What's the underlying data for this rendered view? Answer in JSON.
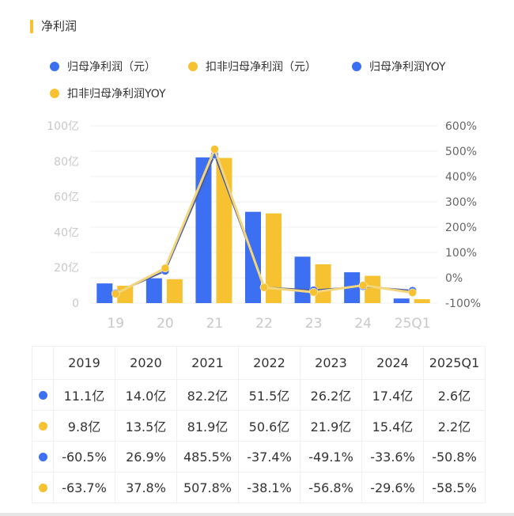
{
  "title": "净利润",
  "colors": {
    "blue": "#3d6ff2",
    "yellow": "#f7c232",
    "blue_line": "#4c5d9c",
    "yellow_line": "#f3d57c"
  },
  "legend": [
    {
      "label": "归母净利润（元）",
      "color": "#3d6ff2"
    },
    {
      "label": "扣非归母净利润（元）",
      "color": "#f7c232"
    },
    {
      "label": "归母净利润YOY",
      "color": "#3d6ff2"
    },
    {
      "label": "扣非归母净利润YOY",
      "color": "#f7c232"
    }
  ],
  "chart_data": {
    "type": "bar+line",
    "categories": [
      "19",
      "20",
      "21",
      "22",
      "23",
      "24",
      "25Q1"
    ],
    "left_axis": {
      "ticks": [
        "0",
        "20亿",
        "40亿",
        "60亿",
        "80亿",
        "100亿"
      ],
      "range": [
        0,
        100
      ],
      "unit": "亿"
    },
    "right_axis": {
      "ticks": [
        "-100%",
        "0%",
        "100%",
        "200%",
        "300%",
        "400%",
        "500%",
        "600%"
      ],
      "range": [
        -100,
        600
      ]
    },
    "grid": true,
    "legend_position": "top",
    "series": [
      {
        "name": "归母净利润（元）",
        "type": "bar",
        "axis": "left",
        "values": [
          11.1,
          14.0,
          82.2,
          51.5,
          26.2,
          17.4,
          2.6
        ]
      },
      {
        "name": "扣非归母净利润（元）",
        "type": "bar",
        "axis": "left",
        "values": [
          9.8,
          13.5,
          81.9,
          50.6,
          21.9,
          15.4,
          2.2
        ]
      },
      {
        "name": "归母净利润YOY",
        "type": "line",
        "axis": "right",
        "values": [
          -60.5,
          26.9,
          485.5,
          -37.4,
          -49.1,
          -33.6,
          -50.8
        ]
      },
      {
        "name": "扣非归母净利润YOY",
        "type": "line",
        "axis": "right",
        "values": [
          -63.7,
          37.8,
          507.8,
          -38.1,
          -56.8,
          -29.6,
          -58.5
        ]
      }
    ]
  },
  "table": {
    "headers": [
      "2019",
      "2020",
      "2021",
      "2022",
      "2023",
      "2024",
      "2025Q1"
    ],
    "rows": [
      {
        "color": "#3d6ff2",
        "cells": [
          "11.1亿",
          "14.0亿",
          "82.2亿",
          "51.5亿",
          "26.2亿",
          "17.4亿",
          "2.6亿"
        ]
      },
      {
        "color": "#f7c232",
        "cells": [
          "9.8亿",
          "13.5亿",
          "81.9亿",
          "50.6亿",
          "21.9亿",
          "15.4亿",
          "2.2亿"
        ]
      },
      {
        "color": "#3d6ff2",
        "cells": [
          "-60.5%",
          "26.9%",
          "485.5%",
          "-37.4%",
          "-49.1%",
          "-33.6%",
          "-50.8%"
        ]
      },
      {
        "color": "#f7c232",
        "cells": [
          "-63.7%",
          "37.8%",
          "507.8%",
          "-38.1%",
          "-56.8%",
          "-29.6%",
          "-58.5%"
        ]
      }
    ]
  }
}
